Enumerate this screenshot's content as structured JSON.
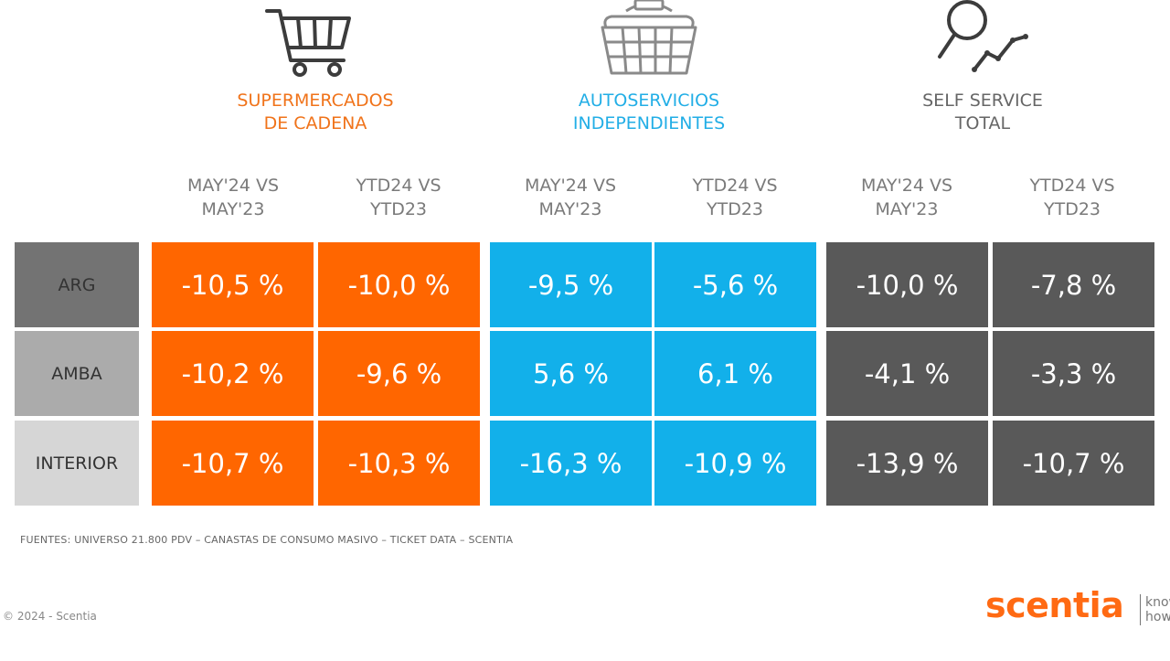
{
  "colors": {
    "supermercados": "#ff6600",
    "autoservicios": "#12b0ea",
    "total": "#595959",
    "row_arg": "#737373",
    "row_amba": "#ababab",
    "row_interior": "#d6d6d6"
  },
  "groups": [
    {
      "title": "SUPERMERCADOS\nDE CADENA",
      "icon": "shopping-cart-icon",
      "color": "#f0731a"
    },
    {
      "title": "AUTOSERVICIOS\nINDEPENDIENTES",
      "icon": "shopping-basket-icon",
      "color": "#22aee6"
    },
    {
      "title": "SELF SERVICE\nTOTAL",
      "icon": "magnifier-trend-icon",
      "color": "#666666"
    }
  ],
  "column_headers": [
    "MAY'24 VS\nMAY'23",
    "YTD24 VS\nYTD23",
    "MAY'24 VS\nMAY'23",
    "YTD24 VS\nYTD23",
    "MAY'24 VS\nMAY'23",
    "YTD24 VS\nYTD23"
  ],
  "rows": [
    {
      "label": "ARG",
      "cells": [
        "-10,5 %",
        "-10,0 %",
        "-9,5 %",
        "-5,6 %",
        "-10,0 %",
        "-7,8 %"
      ]
    },
    {
      "label": "AMBA",
      "cells": [
        "-10,2 %",
        "-9,6 %",
        "5,6 %",
        "6,1 %",
        "-4,1 %",
        "-3,3 %"
      ]
    },
    {
      "label": "INTERIOR",
      "cells": [
        "-10,7 %",
        "-10,3 %",
        "-16,3 %",
        "-10,9 %",
        "-13,9 %",
        "-10,7 %"
      ]
    }
  ],
  "chart_data": {
    "type": "table",
    "groups": [
      "SUPERMERCADOS DE CADENA",
      "AUTOSERVICIOS INDEPENDIENTES",
      "SELF SERVICE TOTAL"
    ],
    "columns": [
      "MAY'24 VS MAY'23",
      "YTD24 VS YTD23"
    ],
    "rows": [
      "ARG",
      "AMBA",
      "INTERIOR"
    ],
    "values_pct": [
      [
        -10.5,
        -10.0,
        -9.5,
        -5.6,
        -10.0,
        -7.8
      ],
      [
        -10.2,
        -9.6,
        5.6,
        6.1,
        -4.1,
        -3.3
      ],
      [
        -10.7,
        -10.3,
        -16.3,
        -10.9,
        -13.9,
        -10.7
      ]
    ]
  },
  "footer": {
    "source": "FUENTES: UNIVERSO 21.800 PDV – CANASTAS DE CONSUMO MASIVO – TICKET DATA  – SCENTIA",
    "copyright": "© 2024 - Scentia",
    "logo": "scentia",
    "tagline": "know\nhow"
  }
}
